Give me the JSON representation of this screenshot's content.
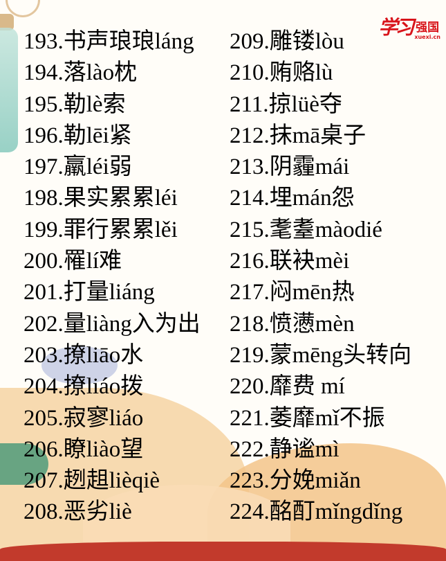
{
  "logo": {
    "script": "学习",
    "name": "强国",
    "url": "xuexi.cn"
  },
  "colors": {
    "text": "#000000",
    "logo": "#d8141b",
    "cloud": "#f3c489"
  },
  "left_column": [
    "193.书声琅琅láng",
    "194.落lào枕",
    "195.勒lè索",
    "196.勒lēi紧",
    "197.羸léi弱",
    "198.果实累累léi",
    "199.罪行累累lěi",
    "200.罹lí难",
    "201.打量liáng",
    "202.量liàng入为出",
    "203.撩liāo水",
    "204.撩liáo拨",
    "205.寂寥liáo",
    "206.瞭liào望",
    "207.趔趄lièqiè",
    "208.恶劣liè"
  ],
  "right_column": [
    "209.雕镂lòu",
    "210.贿赂lù",
    "211.掠lüè夺",
    "212.抹mā桌子",
    "213.阴霾mái",
    "214.埋mán怨",
    "215.耄耋màodié",
    "216.联袂mèi",
    "217.闷mēn热",
    "218.愤懑mèn",
    "219.蒙mēng头转向",
    "220.靡费 mí",
    "221.萎靡mǐ不振",
    "222.静谧mì",
    "223.分娩miǎn",
    "224.酩酊mǐngdǐng"
  ]
}
